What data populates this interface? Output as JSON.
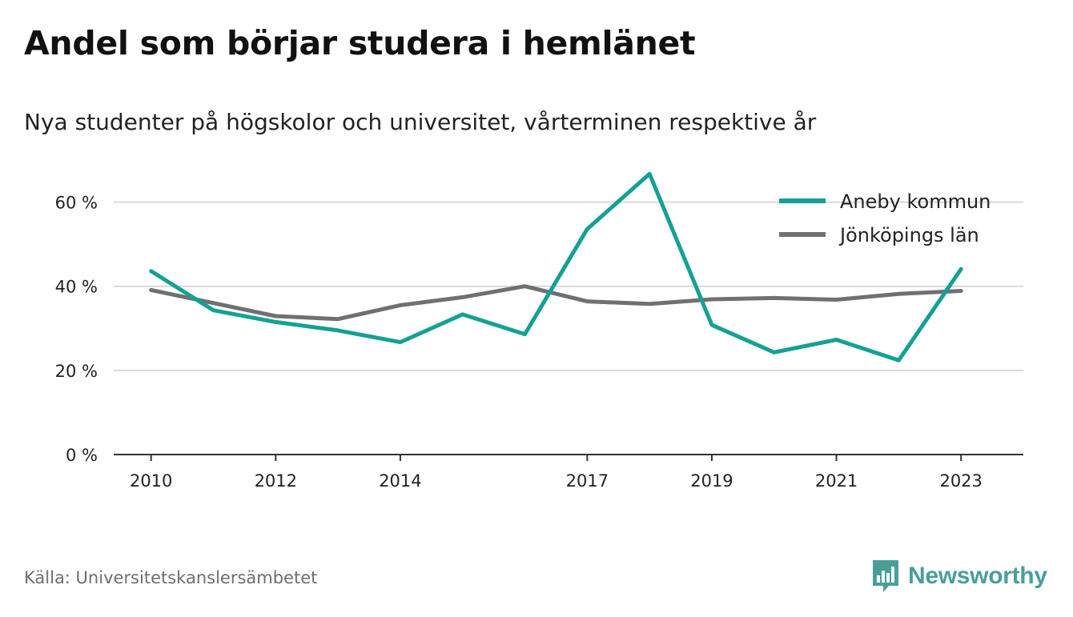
{
  "header": {
    "title": "Andel som börjar studera i hemlänet",
    "subtitle": "Nya studenter på högskolor och universitet, vårterminen respektive år"
  },
  "footer": {
    "source": "Källa: Universitetskanslersämbetet",
    "brand": "Newsworthy",
    "brand_icon": "bar-chart-speech-bubble-icon"
  },
  "colors": {
    "aneby": "#15a096",
    "jonkoping": "#707074",
    "grid": "#d9d9d9",
    "axis": "#333333",
    "brand": "#4a9e9a"
  },
  "chart_data": {
    "type": "line",
    "title": "Andel som börjar studera i hemlänet",
    "subtitle": "Nya studenter på högskolor och universitet, vårterminen respektive år",
    "x": [
      2010,
      2011,
      2012,
      2013,
      2014,
      2015,
      2016,
      2017,
      2018,
      2019,
      2020,
      2021,
      2022,
      2023
    ],
    "x_tick_values": [
      2010,
      2012,
      2014,
      2017,
      2019,
      2021,
      2023
    ],
    "x_tick_labels": [
      "2010",
      "2012",
      "2014",
      "2017",
      "2019",
      "2021",
      "2023"
    ],
    "y_tick_values": [
      0,
      20,
      40,
      60
    ],
    "y_tick_labels": [
      "0 %",
      "20 %",
      "40 %",
      "60 %"
    ],
    "ylim": [
      0,
      70
    ],
    "xlim": [
      2009.4,
      2024.0
    ],
    "grid": true,
    "legend_position": "top-right",
    "series": [
      {
        "name": "Aneby kommun",
        "color": "#15a096",
        "values": [
          43.6,
          34.3,
          31.5,
          29.5,
          26.7,
          33.3,
          28.6,
          53.6,
          66.7,
          30.8,
          24.3,
          27.3,
          22.4,
          44.1
        ]
      },
      {
        "name": "Jönköpings län",
        "color": "#707074",
        "values": [
          39.1,
          36.0,
          32.9,
          32.2,
          35.5,
          37.4,
          40.0,
          36.4,
          35.8,
          36.9,
          37.2,
          36.8,
          38.2,
          38.9
        ]
      }
    ]
  }
}
